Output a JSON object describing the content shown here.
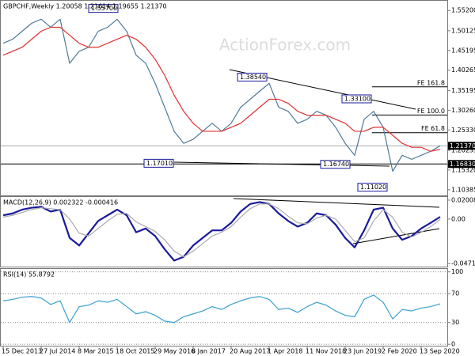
{
  "chart_data": [
    {
      "type": "line",
      "title": "GBPCHF,Weekly  1.20058 1.21614 1.19655 1.21370",
      "watermark": "ActionForex.com",
      "ylim": [
        1.0898,
        1.5761
      ],
      "yticks": [
        {
          "value": 1.552,
          "label": "1.55200"
        },
        {
          "value": 1.50125,
          "label": "1.50125"
        },
        {
          "value": 1.45195,
          "label": "1.45195"
        },
        {
          "value": 1.40265,
          "label": "1.40265"
        },
        {
          "value": 1.35195,
          "label": "1.35195"
        },
        {
          "value": 1.3026,
          "label": "1.30260"
        },
        {
          "value": 1.2533,
          "label": "1.25330"
        },
        {
          "value": 1.20235,
          "label": "1.20235"
        },
        {
          "value": 1.1532,
          "label": "1.15320"
        },
        {
          "value": 1.10385,
          "label": "1.10385"
        }
      ],
      "series": [
        {
          "color": "#4f7a9a",
          "values": [
            1.47,
            1.48,
            1.5,
            1.52,
            1.53,
            1.51,
            1.53,
            1.42,
            1.45,
            1.46,
            1.5,
            1.51,
            1.53,
            1.5,
            1.44,
            1.42,
            1.37,
            1.31,
            1.25,
            1.22,
            1.23,
            1.25,
            1.27,
            1.25,
            1.27,
            1.31,
            1.33,
            1.35,
            1.37,
            1.31,
            1.3,
            1.27,
            1.28,
            1.3,
            1.29,
            1.26,
            1.22,
            1.19,
            1.28,
            1.3,
            1.26,
            1.15,
            1.19,
            1.18,
            1.19,
            1.2,
            1.2137
          ]
        },
        {
          "color": "#e03030",
          "values": [
            1.44,
            1.45,
            1.46,
            1.48,
            1.5,
            1.51,
            1.51,
            1.49,
            1.47,
            1.46,
            1.46,
            1.47,
            1.48,
            1.49,
            1.48,
            1.46,
            1.43,
            1.39,
            1.34,
            1.3,
            1.27,
            1.25,
            1.25,
            1.25,
            1.26,
            1.27,
            1.29,
            1.31,
            1.33,
            1.33,
            1.32,
            1.3,
            1.29,
            1.29,
            1.29,
            1.28,
            1.27,
            1.25,
            1.25,
            1.26,
            1.26,
            1.24,
            1.22,
            1.21,
            1.21,
            1.2,
            1.205
          ]
        }
      ],
      "levels": [
        {
          "value": 1.557,
          "label": "1.55700"
        },
        {
          "value": 1.3854,
          "label": "1.38540"
        },
        {
          "value": 1.331,
          "label": "1.33100"
        },
        {
          "value": 1.1701,
          "label": "1.17010"
        },
        {
          "value": 1.1674,
          "label": "1.16740"
        },
        {
          "value": 1.1102,
          "label": "1.11020"
        }
      ],
      "fe_levels": [
        {
          "value": 1.3611,
          "label": "FE 161.8"
        },
        {
          "value": 1.2907,
          "label": "FE 100.0"
        },
        {
          "value": 1.2465,
          "label": "FE 61.8"
        }
      ],
      "price_markers": [
        {
          "value": 1.2137,
          "label": "1.21370"
        },
        {
          "value": 1.1683,
          "label": "1.16830"
        }
      ]
    },
    {
      "type": "line",
      "title": "MACD(12,26,9) 0.002322 -0.000416",
      "ylim": [
        -0.0504,
        0.0234
      ],
      "yticks": [
        0.020082,
        {
          "value": 0,
          "label": "0.00"
        },
        -0.047154
      ],
      "series": [
        {
          "color": "#1a1a9c",
          "values": [
            0.004,
            0.006,
            0.01,
            0.012,
            0.013,
            0.008,
            0.01,
            -0.02,
            -0.028,
            -0.015,
            -0.002,
            0.004,
            0.01,
            0.004,
            -0.014,
            -0.01,
            -0.018,
            -0.032,
            -0.044,
            -0.04,
            -0.028,
            -0.02,
            -0.012,
            -0.012,
            -0.004,
            0.008,
            0.016,
            0.018,
            0.016,
            0.006,
            -0.002,
            -0.008,
            -0.004,
            0.006,
            0.004,
            -0.006,
            -0.02,
            -0.03,
            -0.012,
            0.01,
            0.012,
            -0.01,
            -0.022,
            -0.018,
            -0.01,
            -0.004,
            0.002322
          ]
        },
        {
          "color": "#aaaaaa",
          "values": [
            0.002,
            0.004,
            0.007,
            0.01,
            0.012,
            0.011,
            0.01,
            0.0,
            -0.015,
            -0.018,
            -0.01,
            -0.002,
            0.005,
            0.006,
            -0.003,
            -0.008,
            -0.013,
            -0.022,
            -0.034,
            -0.04,
            -0.034,
            -0.026,
            -0.018,
            -0.014,
            -0.008,
            0.002,
            0.011,
            0.016,
            0.016,
            0.011,
            0.003,
            -0.004,
            -0.005,
            0.001,
            0.004,
            0.0,
            -0.012,
            -0.024,
            -0.02,
            -0.002,
            0.01,
            0.002,
            -0.014,
            -0.019,
            -0.014,
            -0.008,
            -0.000416
          ]
        }
      ]
    },
    {
      "type": "line",
      "title": "RSI(14) 55.8792",
      "ylim": [
        -2,
        104
      ],
      "yticks": [
        100,
        70,
        30,
        0
      ],
      "grid": true,
      "categories": [
        "15 Dec 2013",
        null,
        null,
        null,
        "27 Jul 2014",
        null,
        null,
        null,
        "8 Mar 2015",
        null,
        null,
        null,
        "18 Oct 2015",
        null,
        null,
        null,
        "29 May 2016",
        null,
        null,
        null,
        "8 Jan 2017",
        null,
        null,
        null,
        "20 Aug 2017",
        null,
        null,
        null,
        "1 Apr 2018",
        null,
        null,
        null,
        "11 Nov 2018",
        null,
        null,
        null,
        "23 Jun 2019",
        null,
        null,
        null,
        "2 Feb 2020",
        null,
        null,
        null,
        "13 Sep 2020",
        null,
        null
      ],
      "series": [
        {
          "color": "#3aa0d0",
          "values": [
            60,
            62,
            65,
            66,
            64,
            55,
            60,
            30,
            52,
            54,
            60,
            58,
            62,
            52,
            42,
            45,
            40,
            32,
            30,
            38,
            42,
            46,
            52,
            48,
            55,
            60,
            64,
            66,
            62,
            48,
            50,
            44,
            52,
            58,
            54,
            46,
            40,
            38,
            62,
            68,
            58,
            35,
            48,
            46,
            50,
            52,
            55.8792
          ]
        }
      ]
    }
  ]
}
